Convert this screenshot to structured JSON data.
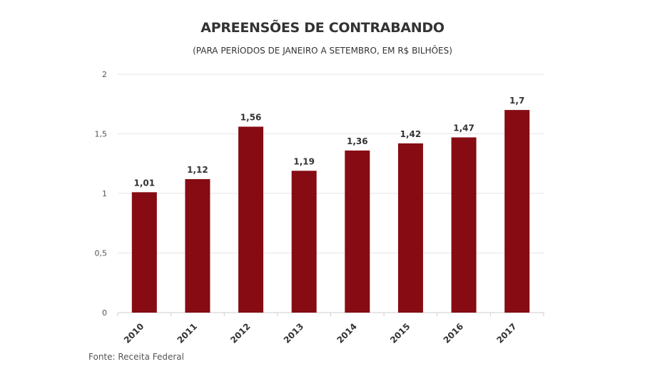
{
  "header": {
    "title": "APREENSÕES DE CONTRABANDO",
    "subtitle": "(PARA PERÍODOS DE JANEIRO A SETEMBRO, EM R$ BILHÕES)"
  },
  "footer": {
    "source": "Fonte: Receita Federal"
  },
  "chart_data": {
    "type": "bar",
    "title": "APREENSÕES DE CONTRABANDO",
    "subtitle": "(PARA PERÍODOS DE JANEIRO A SETEMBRO, EM R$ BILHÕES)",
    "categories": [
      "2010",
      "2011",
      "2012",
      "2013",
      "2014",
      "2015",
      "2016",
      "2017"
    ],
    "values": [
      1.01,
      1.12,
      1.56,
      1.19,
      1.36,
      1.42,
      1.47,
      1.7
    ],
    "value_labels": [
      "1,01",
      "1,12",
      "1,56",
      "1,19",
      "1,36",
      "1,42",
      "1,47",
      "1,7"
    ],
    "yticks": [
      0,
      0.5,
      1,
      1.5,
      2
    ],
    "ytick_labels": [
      "0",
      "0,5",
      "1",
      "1,5",
      "2"
    ],
    "ylim": [
      0,
      2
    ],
    "xlabel": "",
    "ylabel": "",
    "grid": true,
    "bar_color": "#860b12",
    "gridline_color": "#e6e6e6",
    "legend": "none"
  }
}
